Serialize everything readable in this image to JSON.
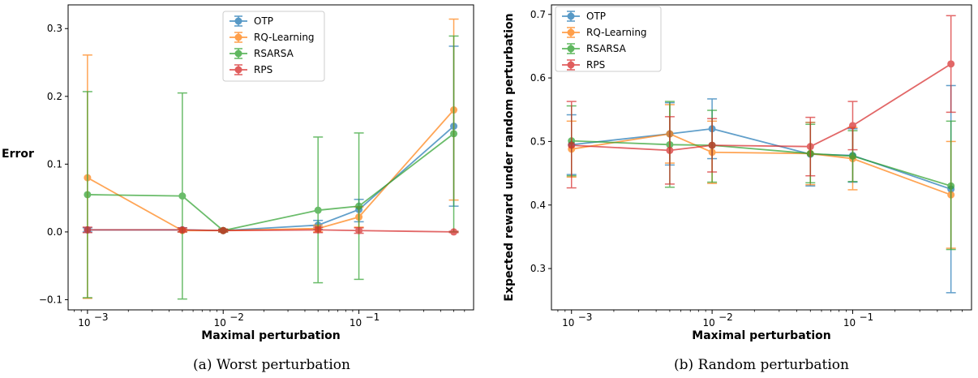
{
  "chart_data": [
    {
      "type": "line",
      "panel": "a",
      "caption": "(a)  Worst perturbation",
      "xlabel": "Maximal perturbation",
      "ylabel": "Error",
      "xscale": "log",
      "xlim": [
        0.00072,
        0.7
      ],
      "ylim": [
        -0.115,
        0.335
      ],
      "xticks": [
        0.001,
        0.01,
        0.1
      ],
      "xtick_labels": [
        "10",
        "10",
        "10"
      ],
      "xtick_exps": [
        "−3",
        "−2",
        "−1"
      ],
      "yticks": [
        -0.1,
        0.0,
        0.1,
        0.2,
        0.3
      ],
      "ytick_labels": [
        "−0.1",
        "0.0",
        "0.1",
        "0.2",
        "0.3"
      ],
      "legend_position": "upper-center",
      "x": [
        0.001,
        0.005,
        0.01,
        0.05,
        0.1,
        0.5
      ],
      "series": [
        {
          "name": "OTP",
          "color": "#1f77b4",
          "values": [
            0.003,
            0.003,
            0.002,
            0.01,
            0.033,
            0.156
          ],
          "err_low": [
            0.0,
            0.0,
            0.0,
            0.004,
            0.015,
            0.038
          ],
          "err_high": [
            0.006,
            0.006,
            0.004,
            0.017,
            0.048,
            0.274
          ]
        },
        {
          "name": "RQ-Learning",
          "color": "#ff7f0e",
          "values": [
            0.08,
            0.002,
            0.002,
            0.005,
            0.022,
            0.18
          ],
          "err_low": [
            -0.098,
            0.0,
            0.0,
            0.0,
            0.007,
            0.047
          ],
          "err_high": [
            0.261,
            0.004,
            0.004,
            0.01,
            0.037,
            0.314
          ]
        },
        {
          "name": "RSARSA",
          "color": "#2ca02c",
          "values": [
            0.055,
            0.053,
            0.002,
            0.032,
            0.038,
            0.145
          ],
          "err_low": [
            -0.097,
            -0.099,
            0.0,
            -0.075,
            -0.07,
            0.0
          ],
          "err_high": [
            0.207,
            0.205,
            0.004,
            0.14,
            0.146,
            0.289
          ]
        },
        {
          "name": "RPS",
          "color": "#d62728",
          "values": [
            0.003,
            0.003,
            0.002,
            0.003,
            0.002,
            0.0
          ],
          "err_low": [
            -0.001,
            0.0,
            0.0,
            -0.001,
            -0.002,
            -0.001
          ],
          "err_high": [
            0.007,
            0.006,
            0.004,
            0.007,
            0.006,
            0.001
          ]
        }
      ]
    },
    {
      "type": "line",
      "panel": "b",
      "caption": "(b)  Random perturbation",
      "xlabel": "Maximal perturbation",
      "ylabel": "Expected reward under random perturbation",
      "xscale": "log",
      "xlim": [
        0.00072,
        0.7
      ],
      "ylim": [
        0.235,
        0.715
      ],
      "xticks": [
        0.001,
        0.01,
        0.1
      ],
      "xtick_labels": [
        "10",
        "10",
        "10"
      ],
      "xtick_exps": [
        "−3",
        "−2",
        "−1"
      ],
      "yticks": [
        0.3,
        0.4,
        0.5,
        0.6,
        0.7
      ],
      "ytick_labels": [
        "0.3",
        "0.4",
        "0.5",
        "0.6",
        "0.7"
      ],
      "legend_position": "upper-left",
      "x": [
        0.001,
        0.005,
        0.01,
        0.05,
        0.1,
        0.5
      ],
      "series": [
        {
          "name": "OTP",
          "color": "#1f77b4",
          "values": [
            0.495,
            0.512,
            0.52,
            0.48,
            0.478,
            0.425
          ],
          "err_low": [
            0.448,
            0.463,
            0.473,
            0.43,
            0.436,
            0.262
          ],
          "err_high": [
            0.542,
            0.561,
            0.567,
            0.53,
            0.52,
            0.588
          ]
        },
        {
          "name": "RQ-Learning",
          "color": "#ff7f0e",
          "values": [
            0.488,
            0.512,
            0.483,
            0.481,
            0.473,
            0.416
          ],
          "err_low": [
            0.444,
            0.466,
            0.434,
            0.432,
            0.424,
            0.332
          ],
          "err_high": [
            0.532,
            0.558,
            0.532,
            0.53,
            0.522,
            0.5
          ]
        },
        {
          "name": "RSARSA",
          "color": "#2ca02c",
          "values": [
            0.501,
            0.495,
            0.494,
            0.481,
            0.477,
            0.43
          ],
          "err_low": [
            0.446,
            0.428,
            0.436,
            0.435,
            0.437,
            0.33
          ],
          "err_high": [
            0.556,
            0.563,
            0.549,
            0.527,
            0.517,
            0.532
          ]
        },
        {
          "name": "RPS",
          "color": "#d62728",
          "values": [
            0.494,
            0.486,
            0.494,
            0.492,
            0.525,
            0.622
          ],
          "err_low": [
            0.427,
            0.433,
            0.452,
            0.446,
            0.487,
            0.546
          ],
          "err_high": [
            0.563,
            0.539,
            0.536,
            0.538,
            0.563,
            0.698
          ]
        }
      ]
    }
  ]
}
